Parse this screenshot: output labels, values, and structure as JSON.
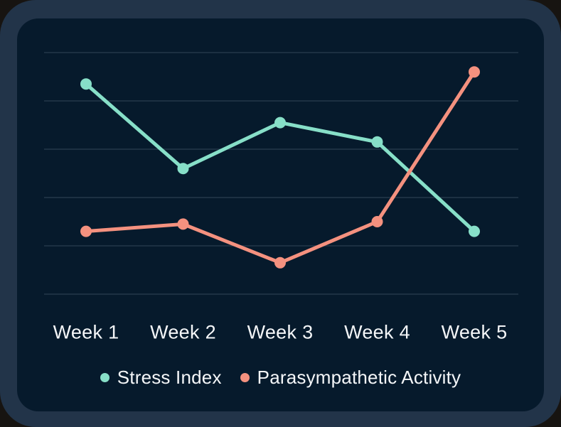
{
  "chart_data": {
    "type": "line",
    "categories": [
      "Week 1",
      "Week 2",
      "Week 3",
      "Week 4",
      "Week 5"
    ],
    "series": [
      {
        "name": "Stress Index",
        "color": "#87DFC8",
        "values": [
          87,
          52,
          71,
          63,
          26
        ]
      },
      {
        "name": "Parasympathetic Activity",
        "color": "#F4917F",
        "values": [
          26,
          29,
          13,
          30,
          92
        ]
      }
    ],
    "title": "",
    "xlabel": "",
    "ylabel": "",
    "ylim": [
      0,
      100
    ],
    "grid": {
      "show": true,
      "horizontal_values": [
        0,
        20,
        40,
        60,
        80,
        100
      ],
      "vertical": false
    },
    "legend_position": "bottom",
    "y_axis_labels_visible": false,
    "x_axis_labels_visible": true
  },
  "theme": {
    "page_background": "#171411",
    "frame_color": "#223449",
    "card_background": "#061A2C",
    "grid_color": "#24374A",
    "label_color": "#F4F6F8"
  }
}
